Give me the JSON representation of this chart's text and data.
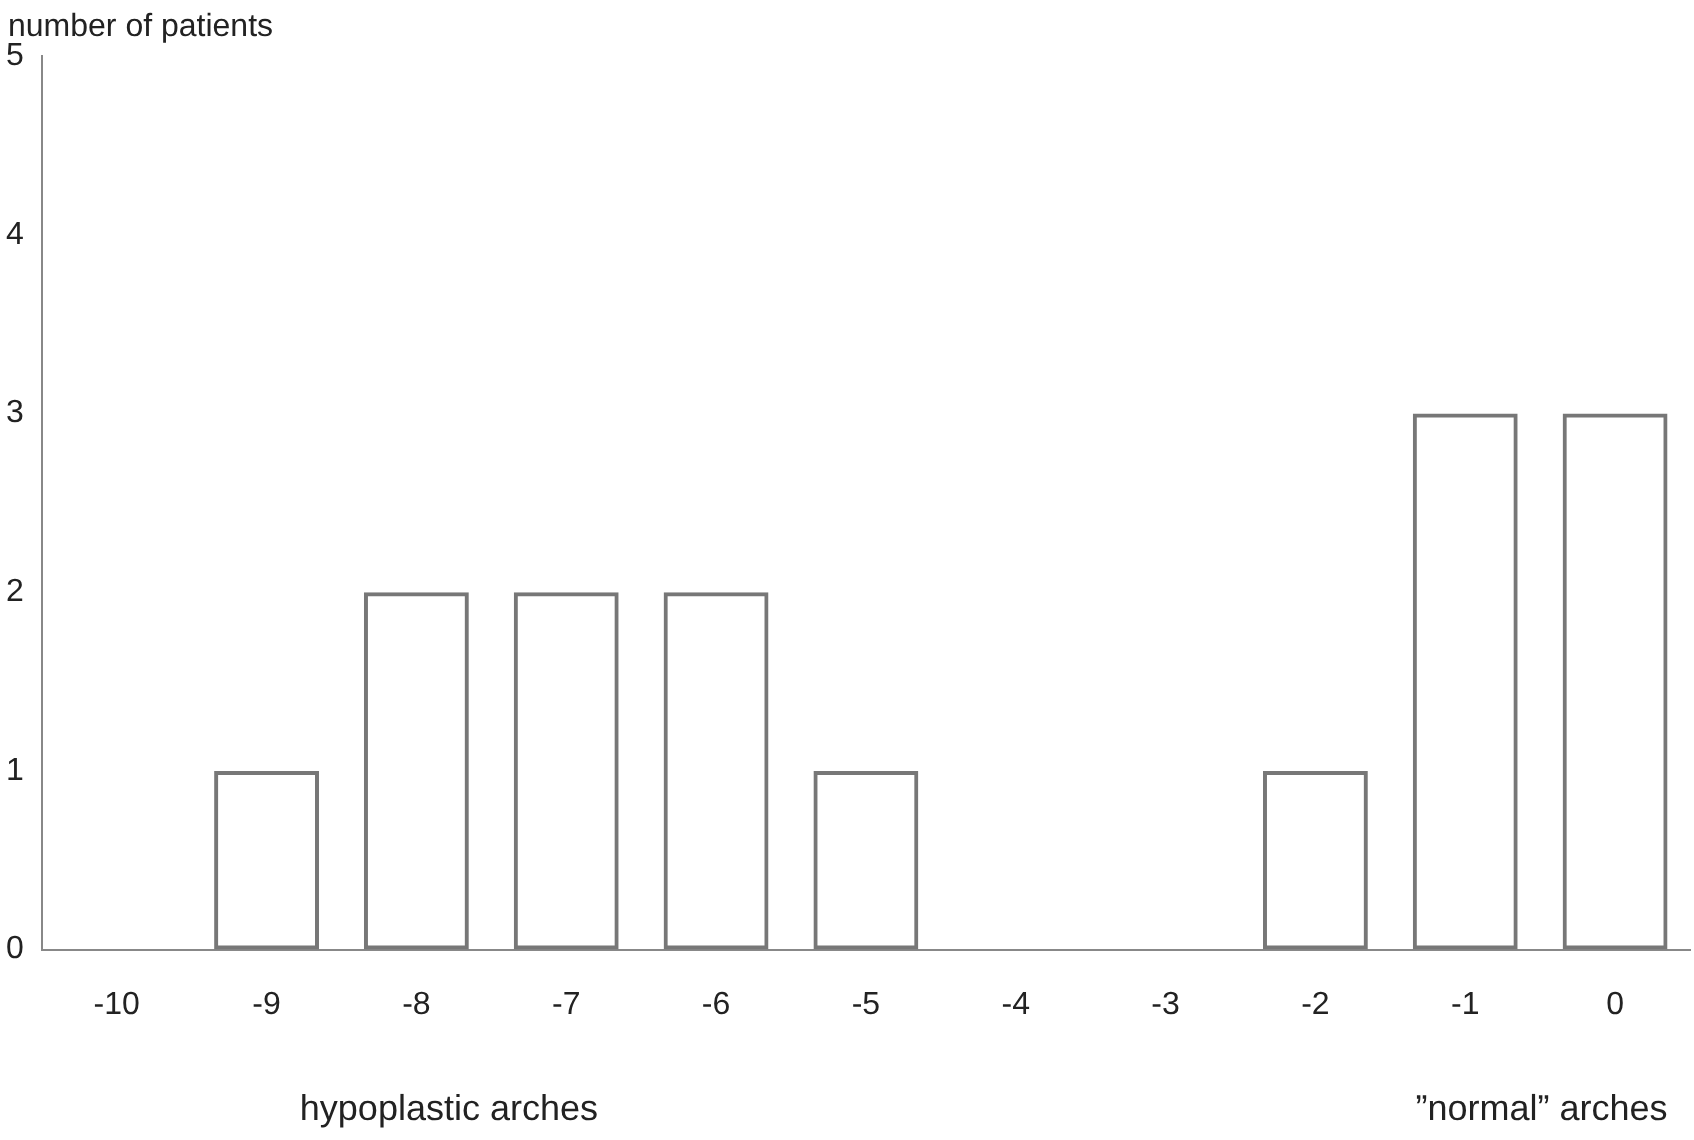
{
  "chart_data": {
    "type": "bar",
    "ylabel": "number of patients",
    "categories": [
      "-10",
      "-9",
      "-8",
      "-7",
      "-6",
      "-5",
      "-4",
      "-3",
      "-2",
      "-1",
      "0"
    ],
    "values": [
      0,
      1,
      2,
      2,
      2,
      1,
      0,
      0,
      1,
      3,
      3
    ],
    "color": "#777777",
    "ylim": [
      0,
      5
    ],
    "yticks": [
      0,
      1,
      2,
      3,
      4,
      5
    ],
    "grid": false,
    "legend": false,
    "annotations": [
      "hypoplastic arches",
      "”normal” arches"
    ]
  }
}
